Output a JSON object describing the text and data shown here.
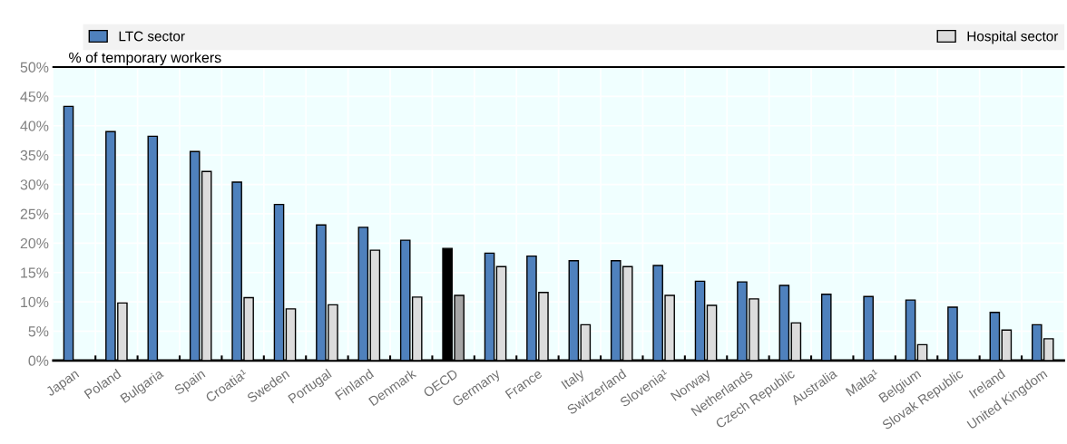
{
  "chart_data": {
    "type": "bar",
    "ylabel": "% of temporary workers",
    "categories": [
      "Japan",
      "Poland",
      "Bulgaria",
      "Spain",
      "Croatia¹",
      "Sweden",
      "Portugal",
      "Finland",
      "Denmark",
      "OECD",
      "Germany",
      "France",
      "Italy",
      "Switzerland",
      "Slovenia¹",
      "Norway",
      "Netherlands",
      "Czech Republic",
      "Australia",
      "Malta¹",
      "Belgium",
      "Slovak Republic",
      "Ireland",
      "United Kingdom"
    ],
    "series": [
      {
        "name": "LTC sector",
        "color": "#4f81bd",
        "colors": [
          "#4f81bd",
          "#4f81bd",
          "#4f81bd",
          "#4f81bd",
          "#4f81bd",
          "#4f81bd",
          "#4f81bd",
          "#4f81bd",
          "#4f81bd",
          "#000000",
          "#4f81bd",
          "#4f81bd",
          "#4f81bd",
          "#4f81bd",
          "#4f81bd",
          "#4f81bd",
          "#4f81bd",
          "#4f81bd",
          "#4f81bd",
          "#4f81bd",
          "#4f81bd",
          "#4f81bd",
          "#4f81bd",
          "#4f81bd"
        ],
        "values": [
          43.3,
          39.0,
          38.2,
          35.6,
          30.4,
          26.6,
          23.1,
          22.7,
          20.5,
          19.1,
          18.3,
          17.8,
          17.0,
          17.0,
          16.2,
          13.5,
          13.4,
          12.8,
          11.3,
          10.9,
          10.3,
          9.1,
          8.2,
          6.1
        ]
      },
      {
        "name": "Hospital sector",
        "color": "#dcdcdc",
        "colors": [
          "#dcdcdc",
          "#dcdcdc",
          "#dcdcdc",
          "#dcdcdc",
          "#dcdcdc",
          "#dcdcdc",
          "#dcdcdc",
          "#dcdcdc",
          "#dcdcdc",
          "#a6a6a6",
          "#dcdcdc",
          "#dcdcdc",
          "#dcdcdc",
          "#dcdcdc",
          "#dcdcdc",
          "#dcdcdc",
          "#dcdcdc",
          "#dcdcdc",
          "#dcdcdc",
          "#dcdcdc",
          "#dcdcdc",
          "#dcdcdc",
          "#dcdcdc",
          "#dcdcdc"
        ],
        "values": [
          null,
          9.8,
          null,
          32.2,
          10.7,
          8.8,
          9.5,
          18.8,
          10.8,
          11.1,
          16.0,
          11.6,
          6.1,
          16.0,
          11.1,
          9.4,
          10.5,
          6.4,
          null,
          null,
          2.7,
          null,
          5.2,
          3.7
        ]
      }
    ],
    "ylim": [
      0,
      50
    ],
    "yticks": [
      {
        "value": 0,
        "label": "0%"
      },
      {
        "value": 5,
        "label": "5%"
      },
      {
        "value": 10,
        "label": "10%"
      },
      {
        "value": 15,
        "label": "15%"
      },
      {
        "value": 20,
        "label": "20%"
      },
      {
        "value": 25,
        "label": "25%"
      },
      {
        "value": 30,
        "label": "30%"
      },
      {
        "value": 35,
        "label": "35%"
      },
      {
        "value": 40,
        "label": "40%"
      },
      {
        "value": 45,
        "label": "45%"
      },
      {
        "value": 50,
        "label": "50%"
      }
    ],
    "grid": true,
    "legend": "top"
  }
}
